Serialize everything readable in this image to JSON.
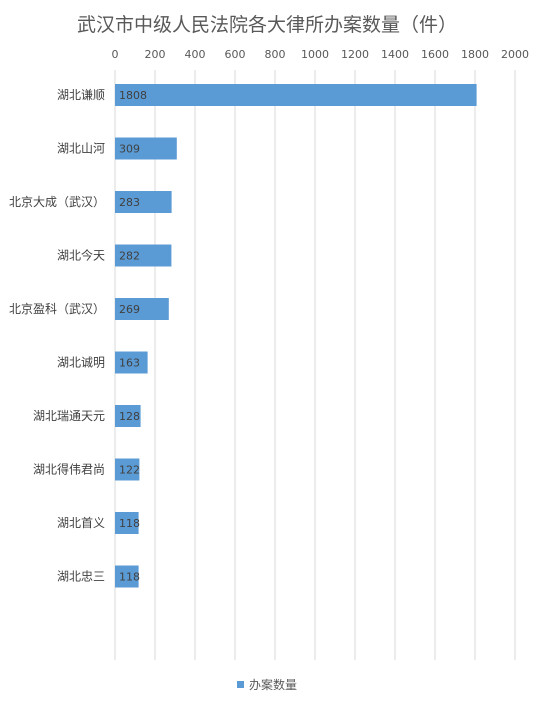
{
  "chart_data": {
    "type": "bar",
    "orientation": "horizontal",
    "title": "武汉市中级人民法院各大律所办案数量（件）",
    "categories": [
      "湖北谦顺",
      "湖北山河",
      "北京大成（武汉）",
      "湖北今天",
      "北京盈科（武汉）",
      "湖北诚明",
      "湖北瑞通天元",
      "湖北得伟君尚",
      "湖北首义",
      "湖北忠三"
    ],
    "series": [
      {
        "name": "办案数量",
        "values": [
          1808,
          309,
          283,
          282,
          269,
          163,
          128,
          122,
          118,
          118
        ],
        "color": "#5B9BD5"
      }
    ],
    "xlim": [
      0,
      2000
    ],
    "xticks": [
      0,
      200,
      400,
      600,
      800,
      1000,
      1200,
      1400,
      1600,
      1800,
      2000
    ],
    "xaxis_position": "top",
    "grid": true,
    "legend_position": "bottom",
    "data_labels": true
  }
}
